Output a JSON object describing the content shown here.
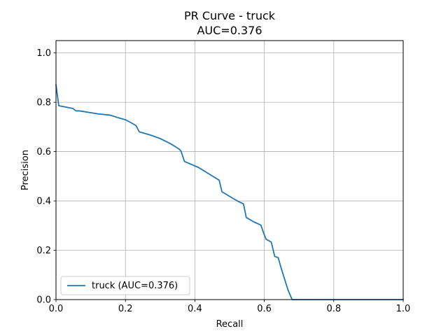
{
  "chart_data": {
    "type": "line",
    "title": "PR Curve - truck",
    "subtitle": "AUC=0.376",
    "xlabel": "Recall",
    "ylabel": "Precision",
    "xlim": [
      0,
      1
    ],
    "ylim": [
      0,
      1.05
    ],
    "xticks": [
      "0.0",
      "0.2",
      "0.4",
      "0.6",
      "0.8",
      "1.0"
    ],
    "yticks": [
      "0.0",
      "0.2",
      "0.4",
      "0.6",
      "0.8",
      "1.0"
    ],
    "grid": true,
    "legend_position": "lower-left",
    "series": [
      {
        "name": "truck (AUC=0.376)",
        "color": "#1f77b4",
        "x": [
          0.0,
          0.008,
          0.03,
          0.048,
          0.058,
          0.068,
          0.09,
          0.12,
          0.155,
          0.18,
          0.2,
          0.215,
          0.23,
          0.24,
          0.27,
          0.3,
          0.33,
          0.355,
          0.36,
          0.37,
          0.39,
          0.41,
          0.44,
          0.47,
          0.478,
          0.49,
          0.51,
          0.525,
          0.54,
          0.548,
          0.57,
          0.59,
          0.598,
          0.605,
          0.62,
          0.63,
          0.64,
          0.648,
          0.658,
          0.668,
          0.68,
          0.75,
          0.85,
          1.0
        ],
        "y": [
          0.87,
          0.786,
          0.78,
          0.775,
          0.765,
          0.765,
          0.76,
          0.753,
          0.748,
          0.737,
          0.729,
          0.718,
          0.706,
          0.68,
          0.668,
          0.653,
          0.632,
          0.61,
          0.602,
          0.56,
          0.548,
          0.536,
          0.51,
          0.484,
          0.437,
          0.427,
          0.41,
          0.398,
          0.388,
          0.333,
          0.315,
          0.302,
          0.27,
          0.245,
          0.233,
          0.175,
          0.17,
          0.13,
          0.085,
          0.04,
          0.0,
          0.0,
          0.0,
          0.0
        ]
      }
    ]
  }
}
